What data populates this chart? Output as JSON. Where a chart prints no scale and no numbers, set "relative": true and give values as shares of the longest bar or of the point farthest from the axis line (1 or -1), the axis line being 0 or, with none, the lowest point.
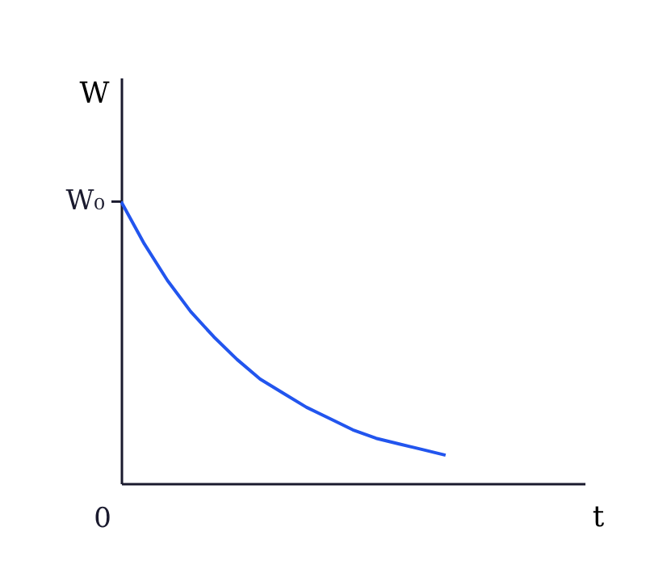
{
  "chart_data": {
    "type": "line",
    "xlabel": "t",
    "ylabel": "W",
    "relative": true,
    "categories": [
      null,
      null,
      null,
      null,
      null,
      null,
      null,
      null,
      null,
      null,
      null,
      null,
      null,
      null,
      null,
      null,
      null,
      null,
      null,
      null,
      null
    ],
    "series": [
      {
        "color": "#2255ee",
        "values": [
          1,
          0.85,
          0.72,
          0.61,
          0.52,
          0.44,
          0.37,
          0.32,
          0.27,
          0.23,
          0.19,
          0.16,
          0.14,
          0.12,
          0.1,
          null,
          null,
          null,
          null,
          null,
          null
        ]
      }
    ],
    "annotations": [
      "W₀",
      "0"
    ],
    "marker": "none",
    "line_style": "solid"
  }
}
